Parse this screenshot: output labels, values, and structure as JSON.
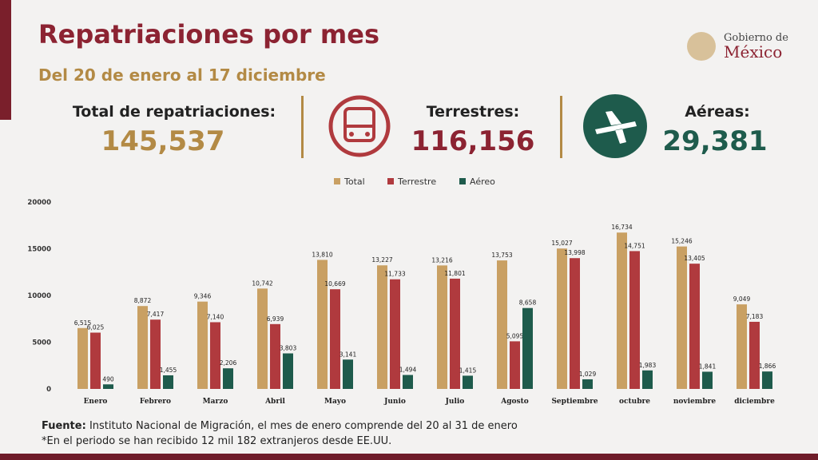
{
  "header": {
    "title": "Repatriaciones por mes",
    "subtitle": "Del 20 de enero al 17 diciembre",
    "logo_line1": "Gobierno de",
    "logo_line2": "México"
  },
  "stats": [
    {
      "label": "Total de repatriaciones:",
      "value": "145,537"
    },
    {
      "label": "Terrestres:",
      "value": "116,156"
    },
    {
      "label": "Aéreas:",
      "value": "29,381"
    }
  ],
  "footer": {
    "source_label": "Fuente:",
    "source_text": "Instituto Nacional de Migración, el mes de enero comprende del 20 al 31 de enero",
    "note": "*En el periodo se han recibido 12 mil 182 extranjeros desde EE.UU."
  },
  "chart_data": {
    "type": "bar",
    "categories": [
      "Enero",
      "Febrero",
      "Marzo",
      "Abril",
      "Mayo",
      "Junio",
      "Julio",
      "Agosto",
      "Septiembre",
      "octubre",
      "noviembre",
      "diciembre"
    ],
    "series": [
      {
        "name": "Total",
        "color": "#c9a063",
        "values": [
          6515,
          8872,
          9346,
          10742,
          13810,
          13227,
          13216,
          13753,
          15027,
          16734,
          15246,
          9049
        ],
        "value_labels": [
          "6,515",
          "8,872",
          "9,346",
          "10,742",
          "13,810",
          "13,227",
          "13,216",
          "13,753",
          "15,027",
          "16,734",
          "15,246",
          "9,049"
        ]
      },
      {
        "name": "Terrestre",
        "color": "#b03a3e",
        "values": [
          6025,
          7417,
          7140,
          6939,
          10669,
          11733,
          11801,
          5095,
          13998,
          14751,
          13405,
          7183
        ],
        "value_labels": [
          "6,025",
          "7,417",
          "7,140",
          "6,939",
          "10,669",
          "11,733",
          "11,801",
          "5,095",
          "13,998",
          "14,751",
          "13,405",
          "7,183"
        ]
      },
      {
        "name": "Aéreo",
        "color": "#1e5b4c",
        "values": [
          490,
          1455,
          2206,
          3803,
          3141,
          1494,
          1415,
          8658,
          1029,
          1983,
          1841,
          1866
        ],
        "value_labels": [
          "490",
          "1,455",
          "2,206",
          "3,803",
          "3,141",
          "1,494",
          "1,415",
          "8,658",
          "1,029",
          "1,983",
          "1,841",
          "1,866"
        ]
      }
    ],
    "ylim": [
      0,
      20000
    ],
    "yticks": [
      0,
      5000,
      10000,
      15000,
      20000
    ],
    "grid": false,
    "legend": "top"
  }
}
